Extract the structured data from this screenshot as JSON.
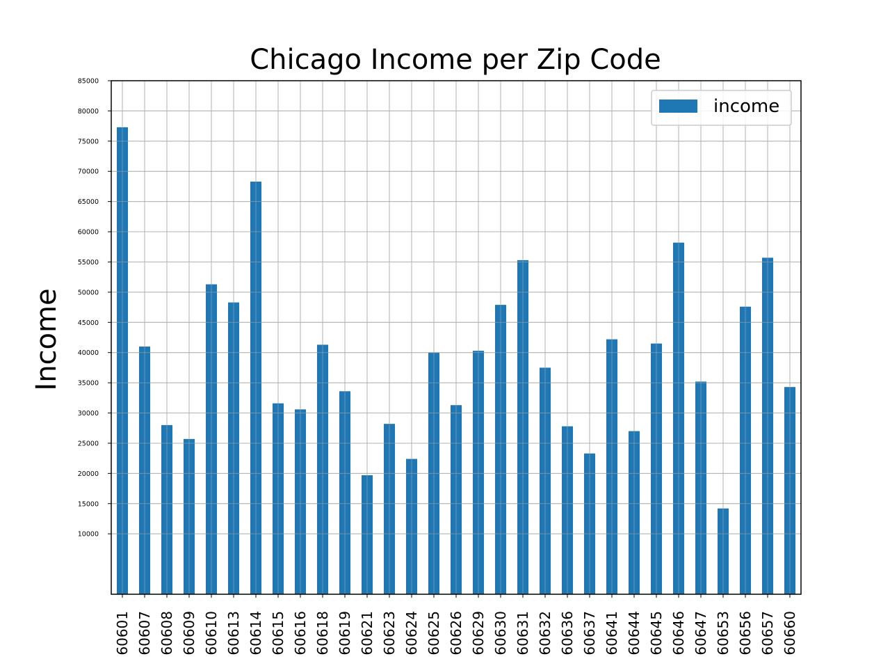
{
  "chart_data": {
    "type": "bar",
    "title": "Chicago Income per Zip Code",
    "xlabel": "",
    "ylabel": "Income",
    "ylim": [
      0,
      85000
    ],
    "yticks": [
      10000,
      15000,
      20000,
      25000,
      30000,
      35000,
      40000,
      45000,
      50000,
      55000,
      60000,
      65000,
      70000,
      75000,
      80000,
      85000
    ],
    "grid": true,
    "legend_position": "top-right",
    "bar_color": "#1f77b4",
    "categories": [
      "60601",
      "60607",
      "60608",
      "60609",
      "60610",
      "60613",
      "60614",
      "60615",
      "60616",
      "60618",
      "60619",
      "60621",
      "60623",
      "60624",
      "60625",
      "60626",
      "60629",
      "60630",
      "60631",
      "60632",
      "60636",
      "60637",
      "60641",
      "60644",
      "60645",
      "60646",
      "60647",
      "60653",
      "60656",
      "60657",
      "60660"
    ],
    "series": [
      {
        "name": "income",
        "values": [
          77300,
          41000,
          28000,
          25700,
          51300,
          48300,
          68300,
          31600,
          30600,
          41300,
          33600,
          19700,
          28200,
          22400,
          40000,
          31300,
          40300,
          47900,
          55300,
          37500,
          27800,
          23300,
          42200,
          27000,
          41500,
          58200,
          35200,
          14200,
          47600,
          55700,
          34300
        ]
      }
    ]
  }
}
